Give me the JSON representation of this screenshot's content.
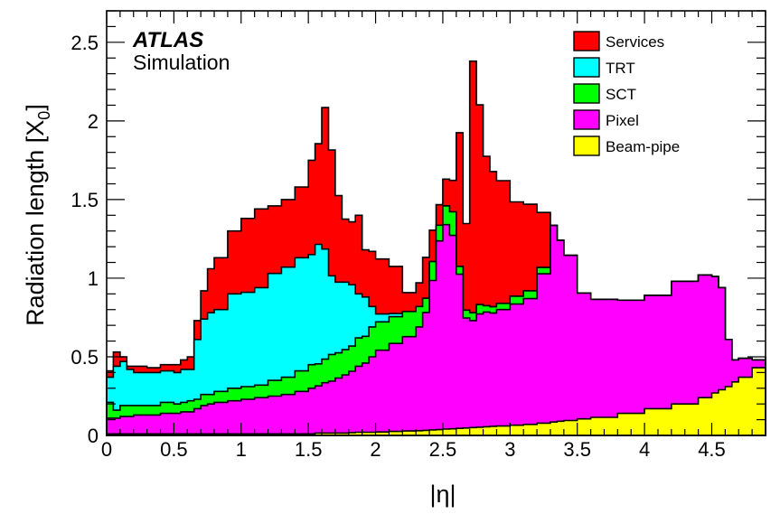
{
  "chart_data": {
    "type": "area",
    "stacked": true,
    "xlabel": "|η|",
    "ylabel": "Radiation length [X",
    "ylabel_subscript": "0",
    "ylabel_suffix": "]",
    "xlim": [
      0,
      4.9
    ],
    "ylim": [
      0,
      2.7
    ],
    "x_ticks": [
      "0",
      "0.5",
      "1",
      "1.5",
      "2",
      "2.5",
      "3",
      "3.5",
      "4",
      "4.5"
    ],
    "y_ticks": [
      "0",
      "0.5",
      "1",
      "1.5",
      "2",
      "2.5"
    ],
    "labels": {
      "experiment": "ATLAS",
      "subtitle": "Simulation"
    },
    "legend_position": "top-right",
    "x_cumulative": [
      0,
      0.05,
      0.1,
      0.15,
      0.2,
      0.3,
      0.4,
      0.5,
      0.55,
      0.6,
      0.65,
      0.7,
      0.75,
      0.8,
      0.9,
      1.0,
      1.1,
      1.2,
      1.3,
      1.4,
      1.5,
      1.55,
      1.6,
      1.65,
      1.7,
      1.75,
      1.8,
      1.85,
      1.9,
      1.95,
      2.0,
      2.1,
      2.2,
      2.3,
      2.35,
      2.4,
      2.45,
      2.5,
      2.55,
      2.6,
      2.65,
      2.7,
      2.75,
      2.8,
      2.85,
      2.9,
      3.0,
      3.1,
      3.2,
      3.3,
      3.35,
      3.4,
      3.5,
      3.6,
      3.8,
      4.0,
      4.2,
      4.4,
      4.5,
      4.55,
      4.6,
      4.65,
      4.7,
      4.8,
      4.9
    ],
    "series": [
      {
        "name": "Beam-pipe",
        "color": "#ffff00",
        "values": [
          0.01,
          0.01,
          0.01,
          0.01,
          0.01,
          0.01,
          0.01,
          0.01,
          0.01,
          0.01,
          0.01,
          0.01,
          0.01,
          0.01,
          0.01,
          0.01,
          0.01,
          0.01,
          0.01,
          0.01,
          0.01,
          0.015,
          0.015,
          0.015,
          0.015,
          0.015,
          0.018,
          0.02,
          0.02,
          0.02,
          0.022,
          0.025,
          0.028,
          0.03,
          0.032,
          0.035,
          0.037,
          0.04,
          0.042,
          0.045,
          0.047,
          0.05,
          0.052,
          0.055,
          0.058,
          0.06,
          0.065,
          0.07,
          0.078,
          0.085,
          0.09,
          0.095,
          0.105,
          0.115,
          0.14,
          0.17,
          0.2,
          0.24,
          0.27,
          0.29,
          0.31,
          0.34,
          0.37,
          0.43,
          0.5
        ]
      },
      {
        "name": "Pixel",
        "color": "#ff00ff",
        "values": [
          0.1,
          0.1,
          0.11,
          0.11,
          0.12,
          0.12,
          0.13,
          0.13,
          0.14,
          0.14,
          0.16,
          0.18,
          0.19,
          0.2,
          0.21,
          0.22,
          0.23,
          0.24,
          0.25,
          0.27,
          0.29,
          0.3,
          0.32,
          0.33,
          0.35,
          0.37,
          0.39,
          0.42,
          0.44,
          0.48,
          0.52,
          0.56,
          0.6,
          0.66,
          0.75,
          0.95,
          1.2,
          1.3,
          1.23,
          0.98,
          0.7,
          0.68,
          0.72,
          0.73,
          0.72,
          0.74,
          0.77,
          0.8,
          0.95,
          1.25,
          1.15,
          1.05,
          0.8,
          0.75,
          0.72,
          0.72,
          0.78,
          0.78,
          0.74,
          0.65,
          0.3,
          0.14,
          0.12,
          0.05,
          0.0
        ]
      },
      {
        "name": "SCT",
        "color": "#00ff00",
        "values": [
          0.1,
          0.05,
          0.07,
          0.07,
          0.06,
          0.06,
          0.07,
          0.06,
          0.06,
          0.07,
          0.06,
          0.07,
          0.06,
          0.07,
          0.08,
          0.08,
          0.08,
          0.1,
          0.11,
          0.13,
          0.15,
          0.14,
          0.15,
          0.17,
          0.16,
          0.16,
          0.16,
          0.18,
          0.17,
          0.19,
          0.18,
          0.17,
          0.16,
          0.13,
          0.09,
          0.12,
          0.1,
          0.12,
          0.15,
          0.05,
          0.05,
          0.05,
          0.06,
          0.04,
          0.04,
          0.04,
          0.05,
          0.05,
          0.04,
          0.0,
          0.0,
          0.0,
          0.0,
          0.0,
          0.0,
          0.0,
          0.0,
          0.0,
          0.0,
          0.0,
          0.0,
          0.0,
          0.0,
          0.0,
          0.0
        ]
      },
      {
        "name": "TRT",
        "color": "#00ffff",
        "values": [
          0.16,
          0.28,
          0.28,
          0.23,
          0.21,
          0.21,
          0.2,
          0.2,
          0.21,
          0.2,
          0.38,
          0.48,
          0.52,
          0.52,
          0.6,
          0.6,
          0.62,
          0.68,
          0.7,
          0.72,
          0.7,
          0.76,
          0.7,
          0.5,
          0.45,
          0.43,
          0.39,
          0.28,
          0.25,
          0.13,
          0.05,
          0.02,
          0.0,
          0.0,
          0.0,
          0.0,
          0.0,
          0.0,
          0.0,
          0.0,
          0.0,
          0.0,
          0.0,
          0.0,
          0.0,
          0.0,
          0.0,
          0.0,
          0.0,
          0.0,
          0.0,
          0.0,
          0.0,
          0.0,
          0.0,
          0.0,
          0.0,
          0.0,
          0.0,
          0.0,
          0.0,
          0.0,
          0.0,
          0.0,
          0.0
        ]
      },
      {
        "name": "Services",
        "color": "#ff0000",
        "values": [
          0.04,
          0.09,
          0.03,
          0.02,
          0.04,
          0.03,
          0.04,
          0.05,
          0.06,
          0.08,
          0.12,
          0.18,
          0.28,
          0.33,
          0.4,
          0.47,
          0.5,
          0.43,
          0.43,
          0.45,
          0.6,
          0.64,
          0.9,
          0.8,
          0.55,
          0.4,
          0.4,
          0.5,
          0.3,
          0.35,
          0.35,
          0.3,
          0.12,
          0.15,
          0.26,
          0.2,
          0.13,
          0.17,
          0.2,
          0.85,
          0.55,
          1.6,
          1.27,
          0.95,
          0.86,
          0.78,
          0.6,
          0.55,
          0.35,
          0.0,
          0.0,
          0.0,
          0.0,
          0.0,
          0.0,
          0.0,
          0.0,
          0.0,
          0.0,
          0.0,
          0.0,
          0.0,
          0.0,
          0.0,
          0.0
        ]
      }
    ],
    "legend": [
      {
        "label": "Services",
        "color": "#ff0000"
      },
      {
        "label": "TRT",
        "color": "#00ffff"
      },
      {
        "label": "SCT",
        "color": "#00ff00"
      },
      {
        "label": "Pixel",
        "color": "#ff00ff"
      },
      {
        "label": "Beam-pipe",
        "color": "#ffff00"
      }
    ]
  }
}
